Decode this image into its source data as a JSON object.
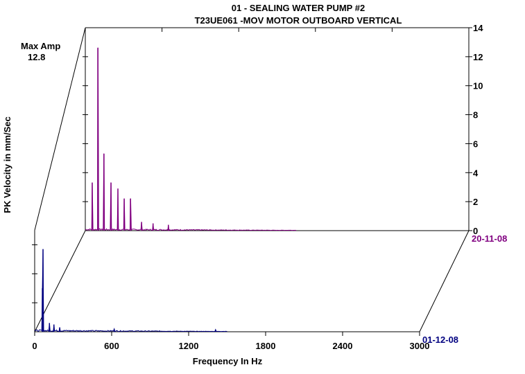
{
  "chart_data": {
    "type": "line",
    "subtype": "waterfall-spectrum",
    "title": "01    - SEALING WATER PUMP #2",
    "subtitle": "T23UE061   -MOV    MOTOR OUTBOARD VERTICAL",
    "xlabel": "Frequency In Hz",
    "ylabel": "PK Velocity in mm/Sec",
    "xlim": [
      0,
      3000
    ],
    "ylim": [
      0,
      14
    ],
    "x_ticks": [
      0,
      600,
      1200,
      1800,
      2400,
      3000
    ],
    "y_ticks": [
      0,
      2,
      4,
      6,
      8,
      10,
      12,
      14
    ],
    "max_amp_label": "Max Amp",
    "max_amp_value": "12.8",
    "grid": false,
    "series": [
      {
        "name": "20-11-08",
        "color": "#800080",
        "peaks": [
          [
            54,
            3.3
          ],
          [
            98,
            12.6
          ],
          [
            146,
            5.3
          ],
          [
            201,
            3.3
          ],
          [
            255,
            2.9
          ],
          [
            304,
            2.2
          ],
          [
            353,
            2.2
          ],
          [
            440,
            0.6
          ],
          [
            530,
            0.5
          ],
          [
            650,
            0.4
          ]
        ],
        "noise_end_hz": 1650
      },
      {
        "name": "01-12-08",
        "color": "#000080",
        "peaks": [
          [
            60,
            3.0
          ],
          [
            65,
            5.7
          ],
          [
            115,
            0.6
          ],
          [
            150,
            0.5
          ],
          [
            195,
            0.3
          ],
          [
            620,
            0.2
          ],
          [
            1410,
            0.15
          ]
        ],
        "noise_end_hz": 1500
      }
    ]
  }
}
